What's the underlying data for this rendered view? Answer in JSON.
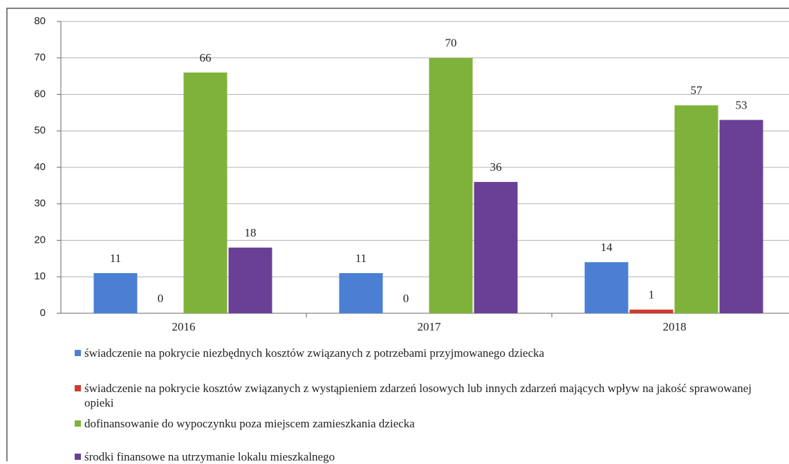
{
  "chart_data": {
    "type": "bar",
    "categories": [
      "2016",
      "2017",
      "2018"
    ],
    "series": [
      {
        "name": "świadczenie na pokrycie niezbędnych kosztów związanych z potrzebami przyjmowanego dziecka",
        "color": "#4a7fd4",
        "values": [
          11,
          11,
          14
        ]
      },
      {
        "name": "świadczenie na pokrycie kosztów związanych z wystąpieniem zdarzeń losowych lub innych zdarzeń mających wpływ na jakość sprawowanej opieki",
        "color": "#d03a2f",
        "values": [
          0,
          0,
          1
        ]
      },
      {
        "name": "dofinansowanie do wypoczynku poza miejscem zamieszkania dziecka",
        "color": "#7fb23a",
        "values": [
          66,
          70,
          57
        ]
      },
      {
        "name": "środki finansowe na utrzymanie lokalu mieszkalnego",
        "color": "#6a3f96",
        "values": [
          18,
          36,
          53
        ]
      }
    ],
    "ylim": [
      0,
      80
    ],
    "yticks": [
      0,
      10,
      20,
      30,
      40,
      50,
      60,
      70,
      80
    ],
    "grid": true,
    "legend": "bottom"
  }
}
